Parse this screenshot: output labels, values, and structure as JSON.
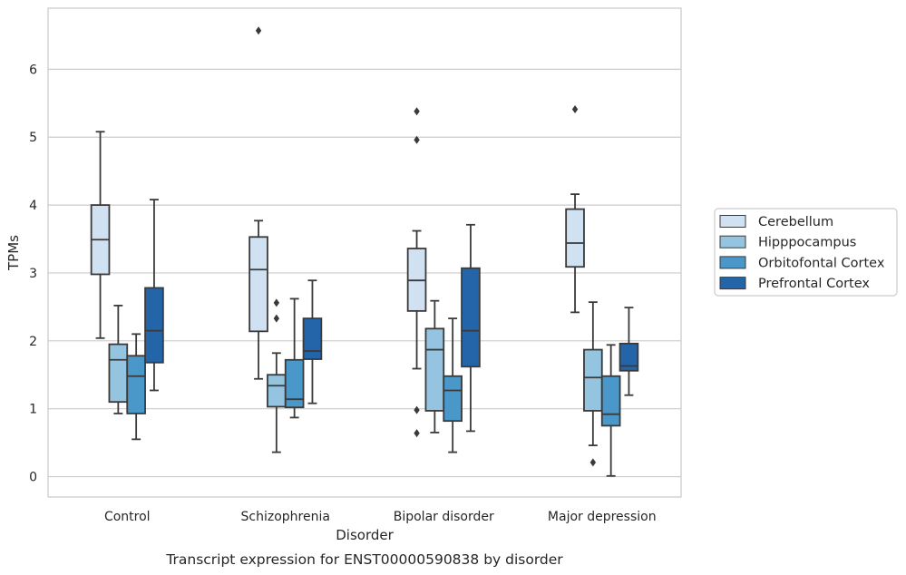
{
  "chart_data": {
    "type": "box",
    "caption": "Transcript expression for ENST00000590838 by disorder",
    "xlabel": "Disorder",
    "ylabel": "TPMs",
    "ylim": [
      -0.3,
      6.9
    ],
    "yticks": [
      0,
      1,
      2,
      3,
      4,
      5,
      6
    ],
    "grid": true,
    "legend_position": "right",
    "categories": [
      "Control",
      "Schizophrenia",
      "Bipolar disorder",
      "Major depression"
    ],
    "series": [
      {
        "name": "Cerebellum",
        "color": "#d0e1f2",
        "boxes": [
          {
            "whislo": 2.04,
            "q1": 2.98,
            "med": 3.49,
            "q3": 4.0,
            "whishi": 5.08,
            "fliers": []
          },
          {
            "whislo": 1.44,
            "q1": 2.14,
            "med": 3.05,
            "q3": 3.53,
            "whishi": 3.77,
            "fliers": [
              6.57
            ]
          },
          {
            "whislo": 1.59,
            "q1": 2.44,
            "med": 2.89,
            "q3": 3.36,
            "whishi": 3.62,
            "fliers": [
              5.38,
              4.96,
              0.98,
              0.64
            ]
          },
          {
            "whislo": 2.42,
            "q1": 3.09,
            "med": 3.44,
            "q3": 3.94,
            "whishi": 4.16,
            "fliers": [
              5.41
            ]
          }
        ]
      },
      {
        "name": "Hipppocampus",
        "color": "#94c4df",
        "boxes": [
          {
            "whislo": 0.93,
            "q1": 1.1,
            "med": 1.72,
            "q3": 1.95,
            "whishi": 2.52,
            "fliers": []
          },
          {
            "whislo": 0.36,
            "q1": 1.03,
            "med": 1.34,
            "q3": 1.5,
            "whishi": 1.82,
            "fliers": [
              2.56,
              2.33
            ]
          },
          {
            "whislo": 0.65,
            "q1": 0.97,
            "med": 1.87,
            "q3": 2.18,
            "whishi": 2.59,
            "fliers": []
          },
          {
            "whislo": 0.46,
            "q1": 0.97,
            "med": 1.46,
            "q3": 1.87,
            "whishi": 2.57,
            "fliers": [
              0.21
            ]
          }
        ]
      },
      {
        "name": "Orbitofontal Cortex",
        "color": "#4a98c9",
        "boxes": [
          {
            "whislo": 0.55,
            "q1": 0.93,
            "med": 1.48,
            "q3": 1.78,
            "whishi": 2.1,
            "fliers": []
          },
          {
            "whislo": 0.87,
            "q1": 1.02,
            "med": 1.14,
            "q3": 1.72,
            "whishi": 2.62,
            "fliers": []
          },
          {
            "whislo": 0.36,
            "q1": 0.82,
            "med": 1.27,
            "q3": 1.48,
            "whishi": 2.33,
            "fliers": []
          },
          {
            "whislo": 0.01,
            "q1": 0.75,
            "med": 0.92,
            "q3": 1.48,
            "whishi": 1.94,
            "fliers": []
          }
        ]
      },
      {
        "name": "Prefrontal Cortex",
        "color": "#2464a8",
        "boxes": [
          {
            "whislo": 1.27,
            "q1": 1.68,
            "med": 2.15,
            "q3": 2.78,
            "whishi": 4.08,
            "fliers": []
          },
          {
            "whislo": 1.08,
            "q1": 1.73,
            "med": 1.85,
            "q3": 2.33,
            "whishi": 2.89,
            "fliers": []
          },
          {
            "whislo": 0.67,
            "q1": 1.62,
            "med": 2.15,
            "q3": 3.07,
            "whishi": 3.71,
            "fliers": []
          },
          {
            "whislo": 1.2,
            "q1": 1.56,
            "med": 1.63,
            "q3": 1.96,
            "whishi": 2.49,
            "fliers": []
          }
        ]
      }
    ]
  }
}
